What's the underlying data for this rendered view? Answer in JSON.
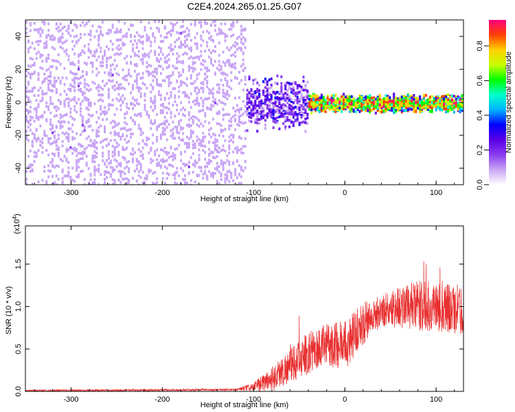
{
  "title": "C2E4.2024.265.01.25.G07",
  "chart_data": [
    {
      "type": "heatmap",
      "title": "C2E4.2024.265.01.25.G07",
      "xlabel": "Height of straight line (km)",
      "ylabel": "Frequency (Hz)",
      "xlim": [
        -350,
        130
      ],
      "ylim": [
        -50,
        50
      ],
      "xticks": [
        -300,
        -200,
        -100,
        0,
        100
      ],
      "yticks": [
        -40,
        -20,
        0,
        20,
        40
      ],
      "colorbar": {
        "label": "Normalized spectral amplitude",
        "range": [
          0,
          0.95
        ],
        "ticks": [
          "0.0",
          "0.2",
          "0.4",
          "0.6",
          "0.8"
        ],
        "tick_values": [
          0,
          0.2,
          0.4,
          0.6,
          0.8
        ],
        "colors": [
          "#ffffff",
          "#c9a6f5",
          "#8a3cf0",
          "#5a00e6",
          "#0000ff",
          "#00b4ff",
          "#00ffcc",
          "#00ff00",
          "#c8ff00",
          "#ffd000",
          "#ff4000",
          "#ff0080"
        ]
      },
      "description_regions": [
        {
          "x_range": [
            -350,
            -110
          ],
          "freq_spread_hz": 50,
          "amplitude": 0.1
        },
        {
          "x_range": [
            -110,
            -40
          ],
          "freq_spread_hz": 18,
          "amplitude": 0.25
        },
        {
          "x_range": [
            -40,
            130
          ],
          "freq_spread_hz": 6,
          "amplitude": 0.7
        }
      ]
    },
    {
      "type": "line",
      "xlabel": "Height of straight line (km)",
      "ylabel": "SNR (10 * v/v)",
      "exponent_label": "(x10",
      "exponent_sup": "4",
      "exponent_close": ")",
      "xlim": [
        -350,
        130
      ],
      "ylim": [
        0,
        1.95
      ],
      "xticks": [
        -300,
        -200,
        -100,
        0,
        100
      ],
      "yticks": [
        0.0,
        0.5,
        1.0,
        1.5
      ],
      "ytick_labels": [
        "0.0",
        "0.5",
        "1.0",
        "1.5"
      ],
      "series": [
        {
          "name": "SNR",
          "color": "#e83030",
          "envelope": {
            "x": [
              -350,
              -120,
              -100,
              -80,
              -60,
              -40,
              -20,
              0,
              20,
              40,
              60,
              80,
              100,
              130
            ],
            "mean": [
              0.01,
              0.02,
              0.05,
              0.15,
              0.3,
              0.45,
              0.55,
              0.55,
              0.8,
              0.95,
              1.0,
              1.0,
              1.0,
              0.95
            ],
            "spread": [
              0.01,
              0.01,
              0.05,
              0.15,
              0.2,
              0.25,
              0.25,
              0.3,
              0.25,
              0.2,
              0.25,
              0.3,
              0.3,
              0.3
            ]
          }
        }
      ]
    }
  ]
}
